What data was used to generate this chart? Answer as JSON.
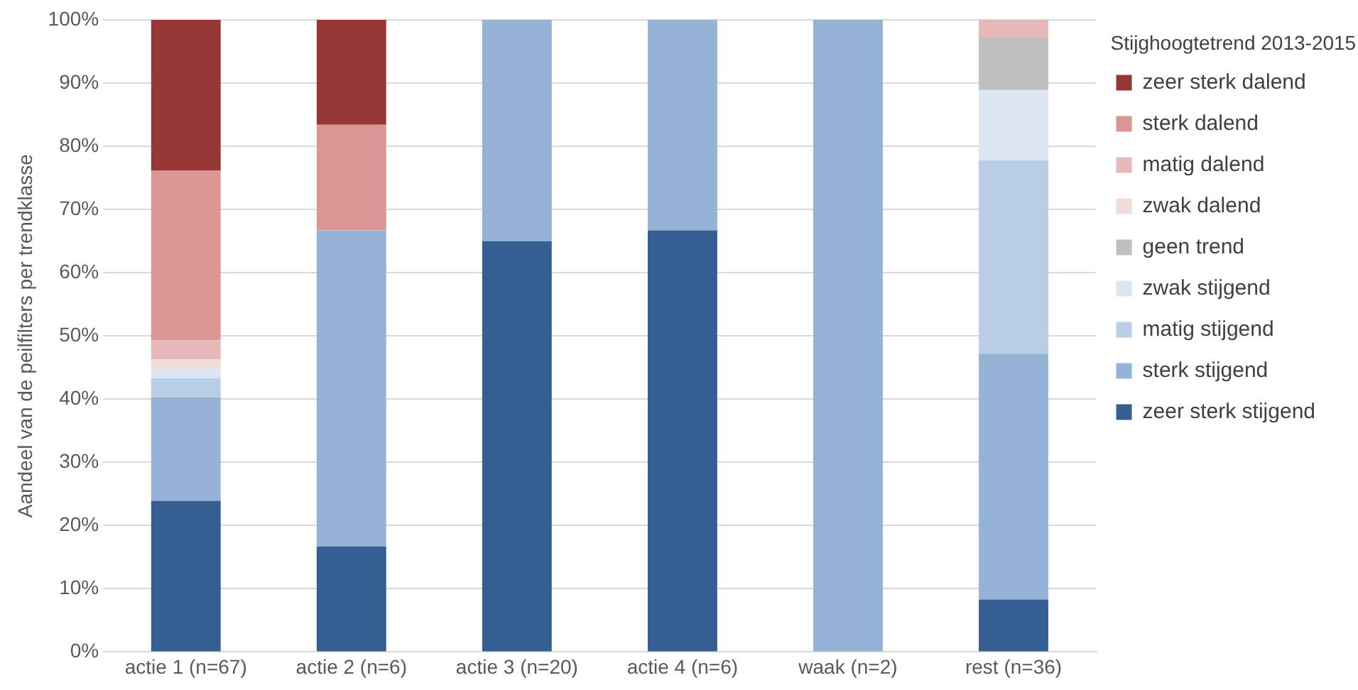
{
  "chart_data": {
    "type": "bar",
    "stacked": true,
    "ylabel": "Aandeel van de peilfilters per trendklasse",
    "legend_title": "Stijghoogtetrend 2013-2015",
    "legend": "right",
    "grid": "y",
    "categories": [
      "actie 1 (n=67)",
      "actie 2 (n=6)",
      "actie 3 (n=20)",
      "actie 4 (n=6)",
      "waak (n=2)",
      "rest (n=36)"
    ],
    "ylim": [
      0,
      100
    ],
    "yticks": [
      {
        "value": 0,
        "label": "0%"
      },
      {
        "value": 10,
        "label": "10%"
      },
      {
        "value": 20,
        "label": "20%"
      },
      {
        "value": 30,
        "label": "30%"
      },
      {
        "value": 40,
        "label": "40%"
      },
      {
        "value": 50,
        "label": "50%"
      },
      {
        "value": 60,
        "label": "60%"
      },
      {
        "value": 70,
        "label": "70%"
      },
      {
        "value": 80,
        "label": "80%"
      },
      {
        "value": 90,
        "label": "90%"
      },
      {
        "value": 100,
        "label": "100%"
      }
    ],
    "series": [
      {
        "name": "zeer sterk stijgend",
        "color": "#365f91",
        "values": [
          23.9,
          16.7,
          65,
          66.7,
          0,
          8.3
        ]
      },
      {
        "name": "sterk stijgend",
        "color": "#95b3d7",
        "values": [
          16.4,
          50,
          35,
          33.3,
          100,
          38.9
        ]
      },
      {
        "name": "matig stijgend",
        "color": "#b9cde5",
        "values": [
          3.0,
          0,
          0,
          0,
          0,
          30.6
        ]
      },
      {
        "name": "zwak stijgend",
        "color": "#dce6f2",
        "values": [
          1.5,
          0,
          0,
          0,
          0,
          11.1
        ]
      },
      {
        "name": "geen trend",
        "color": "#bfbfbf",
        "values": [
          0,
          0,
          0,
          0,
          0,
          8.3
        ]
      },
      {
        "name": "zwak dalend",
        "color": "#f2dcdb",
        "values": [
          1.5,
          0,
          0,
          0,
          0,
          0
        ]
      },
      {
        "name": "matig dalend",
        "color": "#e6b9b8",
        "values": [
          3.0,
          0,
          0,
          0,
          0,
          2.8
        ]
      },
      {
        "name": "sterk dalend",
        "color": "#d99694",
        "values": [
          26.9,
          16.7,
          0,
          0,
          0,
          0
        ]
      },
      {
        "name": "zeer sterk dalend",
        "color": "#953735",
        "values": [
          23.9,
          16.6,
          0,
          0,
          0,
          0
        ]
      }
    ]
  }
}
